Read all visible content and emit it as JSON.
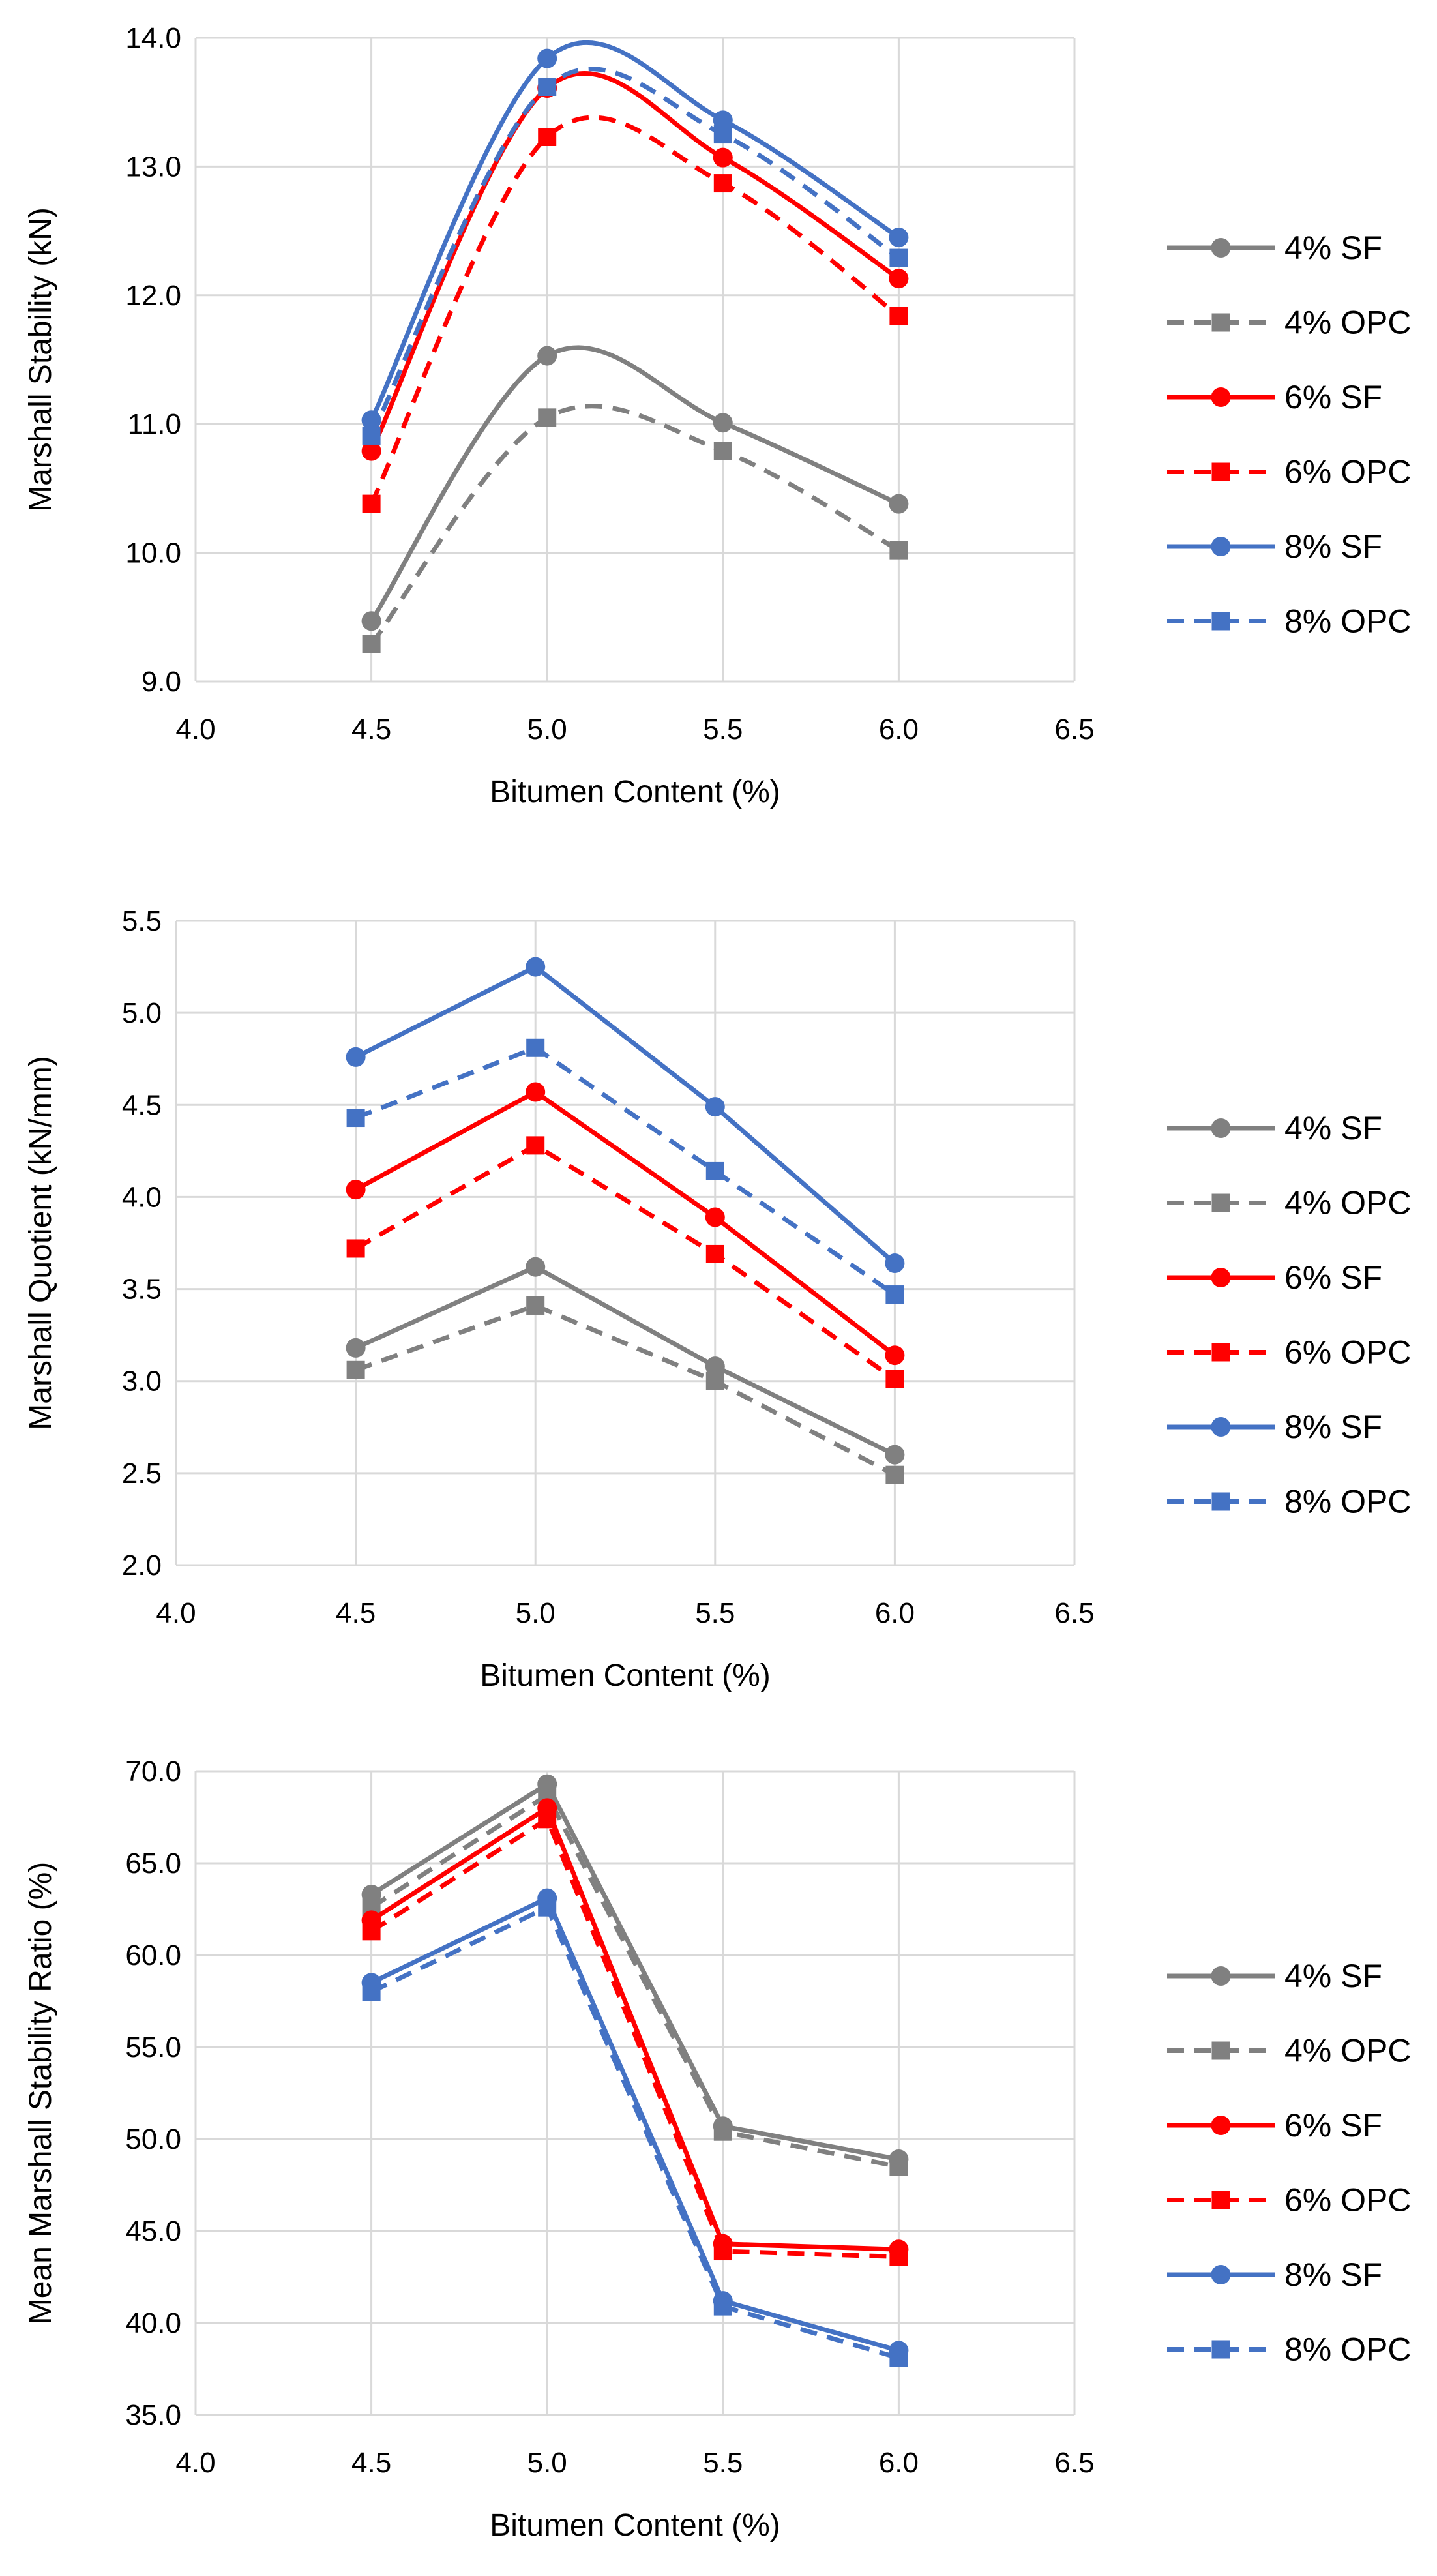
{
  "colors": {
    "gray": "#808080",
    "red": "#ff0000",
    "blue": "#4472c4",
    "grid": "#d9d9d9"
  },
  "chart_data": [
    {
      "type": "line",
      "xlabel": "Bitumen Content (%)",
      "ylabel": "Marshall Stability (kN)",
      "xlim": [
        4.0,
        6.5
      ],
      "ylim": [
        9.0,
        14.0
      ],
      "xticks": [
        "4.0",
        "4.5",
        "5.0",
        "5.5",
        "6.0",
        "6.5"
      ],
      "yticks": [
        "9.0",
        "10.0",
        "11.0",
        "12.0",
        "13.0",
        "14.0"
      ],
      "smooth": true,
      "grid": true,
      "legend_position": "right",
      "x": [
        4.5,
        5.0,
        5.5,
        6.0
      ],
      "series": [
        {
          "name": "4% SF",
          "values": [
            9.47,
            11.53,
            11.01,
            10.38
          ],
          "color": "gray",
          "dashed": false,
          "marker": "circle"
        },
        {
          "name": "4% OPC",
          "values": [
            9.29,
            11.05,
            10.79,
            10.02
          ],
          "color": "gray",
          "dashed": true,
          "marker": "square"
        },
        {
          "name": "6% SF",
          "values": [
            10.79,
            13.61,
            13.07,
            12.13
          ],
          "color": "red",
          "dashed": false,
          "marker": "circle"
        },
        {
          "name": "6% OPC",
          "values": [
            10.38,
            13.23,
            12.87,
            11.84
          ],
          "color": "red",
          "dashed": true,
          "marker": "square"
        },
        {
          "name": "8% SF",
          "values": [
            11.03,
            13.84,
            13.36,
            12.45
          ],
          "color": "blue",
          "dashed": false,
          "marker": "circle"
        },
        {
          "name": "8% OPC",
          "values": [
            10.91,
            13.62,
            13.25,
            12.29
          ],
          "color": "blue",
          "dashed": true,
          "marker": "square"
        }
      ]
    },
    {
      "type": "line",
      "xlabel": "Bitumen Content (%)",
      "ylabel": "Marshall Quotient (kN/mm)",
      "xlim": [
        4.0,
        6.5
      ],
      "ylim": [
        2.0,
        5.5
      ],
      "xticks": [
        "4.0",
        "4.5",
        "5.0",
        "5.5",
        "6.0",
        "6.5"
      ],
      "yticks": [
        "2.0",
        "2.5",
        "3.0",
        "3.5",
        "4.0",
        "4.5",
        "5.0",
        "5.5"
      ],
      "smooth": false,
      "grid": true,
      "legend_position": "right",
      "x": [
        4.5,
        5.0,
        5.5,
        6.0
      ],
      "series": [
        {
          "name": "4% SF",
          "values": [
            3.18,
            3.62,
            3.08,
            2.6
          ],
          "color": "gray",
          "dashed": false,
          "marker": "circle"
        },
        {
          "name": "4% OPC",
          "values": [
            3.06,
            3.41,
            3.0,
            2.49
          ],
          "color": "gray",
          "dashed": true,
          "marker": "square"
        },
        {
          "name": "6% SF",
          "values": [
            4.04,
            4.57,
            3.89,
            3.14
          ],
          "color": "red",
          "dashed": false,
          "marker": "circle"
        },
        {
          "name": "6% OPC",
          "values": [
            3.72,
            4.28,
            3.69,
            3.01
          ],
          "color": "red",
          "dashed": true,
          "marker": "square"
        },
        {
          "name": "8% SF",
          "values": [
            4.76,
            5.25,
            4.49,
            3.64
          ],
          "color": "blue",
          "dashed": false,
          "marker": "circle"
        },
        {
          "name": "8% OPC",
          "values": [
            4.43,
            4.81,
            4.14,
            3.47
          ],
          "color": "blue",
          "dashed": true,
          "marker": "square"
        }
      ]
    },
    {
      "type": "line",
      "xlabel": "Bitumen Content (%)",
      "ylabel": "Mean Marshall Stability Ratio (%)",
      "xlim": [
        4.0,
        6.5
      ],
      "ylim": [
        35.0,
        70.0
      ],
      "xticks": [
        "4.0",
        "4.5",
        "5.0",
        "5.5",
        "6.0",
        "6.5"
      ],
      "yticks": [
        "35.0",
        "40.0",
        "45.0",
        "50.0",
        "55.0",
        "60.0",
        "65.0",
        "70.0"
      ],
      "smooth": false,
      "grid": true,
      "legend_position": "right",
      "x": [
        4.5,
        5.0,
        5.5,
        6.0
      ],
      "series": [
        {
          "name": "4% SF",
          "values": [
            63.3,
            69.3,
            50.7,
            48.9
          ],
          "color": "gray",
          "dashed": false,
          "marker": "circle"
        },
        {
          "name": "4% OPC",
          "values": [
            62.6,
            68.7,
            50.4,
            48.5
          ],
          "color": "gray",
          "dashed": true,
          "marker": "square"
        },
        {
          "name": "6% SF",
          "values": [
            61.9,
            68.0,
            44.3,
            44.0
          ],
          "color": "red",
          "dashed": false,
          "marker": "circle"
        },
        {
          "name": "6% OPC",
          "values": [
            61.3,
            67.4,
            43.9,
            43.6
          ],
          "color": "red",
          "dashed": true,
          "marker": "square"
        },
        {
          "name": "8% SF",
          "values": [
            58.5,
            63.1,
            41.2,
            38.5
          ],
          "color": "blue",
          "dashed": false,
          "marker": "circle"
        },
        {
          "name": "8% OPC",
          "values": [
            58.0,
            62.6,
            40.9,
            38.1
          ],
          "color": "blue",
          "dashed": true,
          "marker": "square"
        }
      ]
    }
  ]
}
